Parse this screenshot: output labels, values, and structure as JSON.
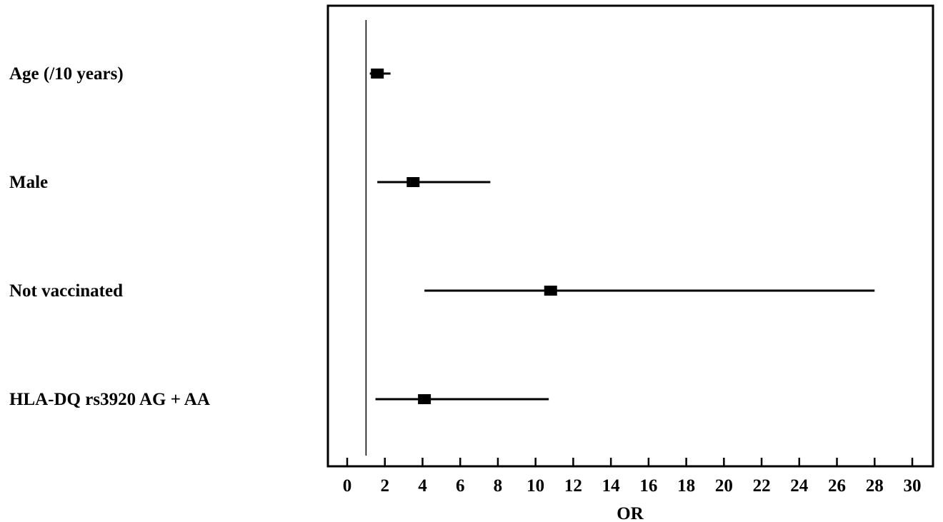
{
  "chart_data": {
    "type": "forest",
    "xlabel": "OR",
    "xlim": [
      0,
      30
    ],
    "xticks": [
      0,
      2,
      4,
      6,
      8,
      10,
      12,
      14,
      16,
      18,
      20,
      22,
      24,
      26,
      28,
      30
    ],
    "reference_line": 1,
    "grid": false,
    "legend": "none",
    "rows": [
      {
        "label": "Age (/10 years)",
        "or": 1.6,
        "ci_low": 1.2,
        "ci_high": 2.3
      },
      {
        "label": "Male",
        "or": 3.5,
        "ci_low": 1.6,
        "ci_high": 7.6
      },
      {
        "label": "Not vaccinated",
        "or": 10.8,
        "ci_low": 4.1,
        "ci_high": 28.0
      },
      {
        "label": "HLA-DQ rs3920 AG + AA",
        "or": 4.1,
        "ci_low": 1.5,
        "ci_high": 10.7
      }
    ],
    "colors": {
      "marker": "#000000",
      "line": "#000000",
      "frame": "#000000"
    }
  }
}
